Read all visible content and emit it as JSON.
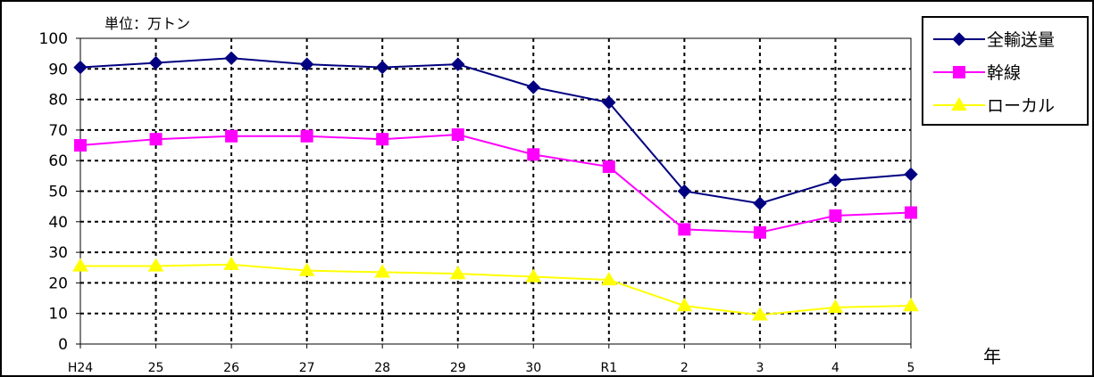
{
  "chart_data": {
    "type": "line",
    "unit_label": "単位：万トン",
    "x_unit_label": "年",
    "categories": [
      "H24",
      "25",
      "26",
      "27",
      "28",
      "29",
      "30",
      "R1",
      "2",
      "3",
      "4",
      "5"
    ],
    "ylim": [
      0,
      100
    ],
    "yticks": [
      0,
      10,
      20,
      30,
      40,
      50,
      60,
      70,
      80,
      90,
      100
    ],
    "grid": true,
    "legend_position": "top-right",
    "series": [
      {
        "name": "全輸送量",
        "color": "#000080",
        "marker": "diamond",
        "values": [
          90.5,
          92.0,
          93.5,
          91.5,
          90.5,
          91.5,
          84.0,
          79.0,
          50.0,
          46.0,
          53.5,
          55.5
        ]
      },
      {
        "name": "幹線",
        "color": "#ff00ff",
        "marker": "square",
        "values": [
          65.0,
          67.0,
          68.0,
          68.0,
          67.0,
          68.5,
          62.0,
          58.0,
          37.5,
          36.5,
          42.0,
          43.0
        ]
      },
      {
        "name": "ローカル",
        "color": "#ffff00",
        "marker": "triangle",
        "values": [
          25.5,
          25.5,
          26.0,
          24.0,
          23.5,
          23.0,
          22.0,
          21.0,
          12.5,
          9.5,
          12.0,
          12.5
        ]
      }
    ]
  }
}
